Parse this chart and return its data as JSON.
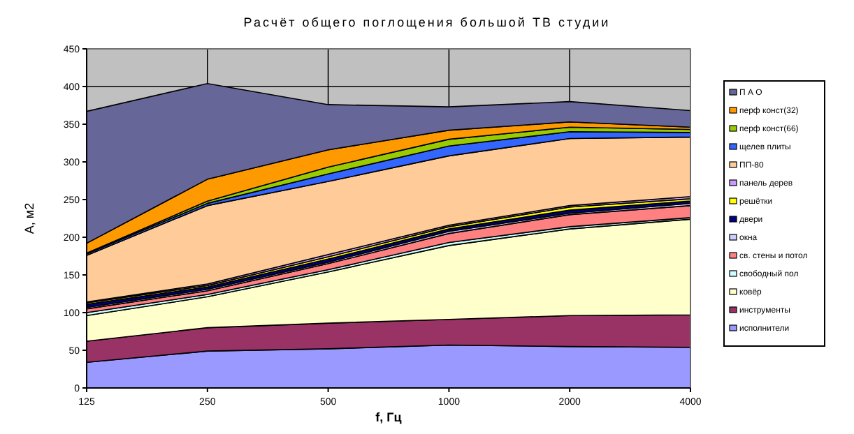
{
  "chart_data": {
    "type": "area",
    "stacked": true,
    "title": "Расчёт общего поглощения большой ТВ студии",
    "xlabel": "f, Гц",
    "ylabel": "А, м2",
    "categories": [
      "125",
      "250",
      "500",
      "1000",
      "2000",
      "4000"
    ],
    "ylim": [
      0,
      450
    ],
    "yticks": [
      0,
      50,
      100,
      150,
      200,
      250,
      300,
      350,
      400,
      450
    ],
    "grid": true,
    "legend": "right",
    "series": [
      {
        "name": "исполнители",
        "color": "#9999ff",
        "values": [
          34,
          49,
          52,
          57,
          55,
          54
        ]
      },
      {
        "name": "инструменты",
        "color": "#993366",
        "values": [
          28,
          31,
          34,
          34,
          41,
          43
        ]
      },
      {
        "name": "ковёр",
        "color": "#ffffcc",
        "values": [
          34,
          41,
          68,
          98,
          115,
          127
        ]
      },
      {
        "name": "свободный пол",
        "color": "#ccffff",
        "values": [
          4,
          3,
          3,
          4,
          3,
          2
        ]
      },
      {
        "name": "св. стены и потол",
        "color": "#ff8080",
        "values": [
          5,
          5,
          8,
          12,
          16,
          16
        ]
      },
      {
        "name": "окна",
        "color": "#ccccff",
        "values": [
          2,
          2,
          2,
          3,
          2,
          3
        ]
      },
      {
        "name": "двери",
        "color": "#000080",
        "values": [
          4,
          3,
          4,
          3,
          4,
          3
        ]
      },
      {
        "name": "решётки",
        "color": "#ffff00",
        "values": [
          2,
          2,
          3,
          3,
          4,
          3
        ]
      },
      {
        "name": "панель дерев",
        "color": "#cc99ff",
        "values": [
          1,
          2,
          3,
          2,
          2,
          3
        ]
      },
      {
        "name": "ПП-80",
        "color": "#ffcc99",
        "values": [
          62,
          104,
          97,
          92,
          89,
          79
        ]
      },
      {
        "name": "щелев плиты",
        "color": "#3366ff",
        "values": [
          2,
          3,
          10,
          13,
          9,
          6
        ]
      },
      {
        "name": "перф конст(66)",
        "color": "#99cc00",
        "values": [
          1,
          3,
          9,
          9,
          6,
          4
        ]
      },
      {
        "name": "перф конст(32)",
        "color": "#ff9900",
        "values": [
          13,
          29,
          23,
          12,
          7,
          3
        ]
      },
      {
        "name": "П А О",
        "color": "#666699",
        "values": [
          175,
          127,
          60,
          31,
          27,
          22
        ]
      }
    ]
  }
}
